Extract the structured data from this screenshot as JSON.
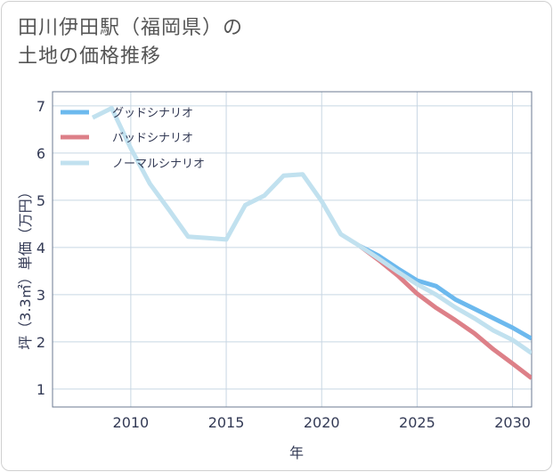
{
  "title": {
    "line1": "田川伊田駅（福岡県）の",
    "line2": "土地の価格推移"
  },
  "colors": {
    "good": "#6cb9ee",
    "bad": "#dd8088",
    "normal": "#c1e1ef",
    "grid": "#c8d6e3",
    "axis": "#6b7a90"
  },
  "chart_data": {
    "type": "line",
    "title": "田川伊田駅（福岡県）の土地の価格推移",
    "xlabel": "年",
    "ylabel": "坪（3.3㎡）単価（万円）",
    "xlim": [
      2005.9,
      2031
    ],
    "ylim": [
      0.62,
      7.3
    ],
    "xticks": [
      2010,
      2015,
      2020,
      2025,
      2030
    ],
    "yticks": [
      1,
      2,
      3,
      4,
      5,
      6,
      7
    ],
    "grid": true,
    "legend_position": "top-left",
    "series": [
      {
        "key": "good",
        "name": "グッドシナリオ",
        "x": [
          2022,
          2023,
          2024,
          2025,
          2026,
          2027,
          2028,
          2029,
          2030,
          2031
        ],
        "y": [
          4.03,
          3.82,
          3.55,
          3.3,
          3.18,
          2.9,
          2.7,
          2.5,
          2.3,
          2.07
        ]
      },
      {
        "key": "bad",
        "name": "バッドシナリオ",
        "x": [
          2022,
          2023,
          2024,
          2025,
          2026,
          2027,
          2028,
          2029,
          2030,
          2031
        ],
        "y": [
          4.03,
          3.73,
          3.4,
          3.02,
          2.72,
          2.46,
          2.18,
          1.84,
          1.54,
          1.23
        ]
      },
      {
        "key": "normal",
        "name": "ノーマルシナリオ",
        "x": [
          2008,
          2009,
          2010,
          2011,
          2012,
          2013,
          2014,
          2015,
          2016,
          2017,
          2018,
          2019,
          2020,
          2021,
          2022,
          2023,
          2024,
          2025,
          2026,
          2027,
          2028,
          2029,
          2030,
          2031
        ],
        "y": [
          6.75,
          6.95,
          6.1,
          5.35,
          4.8,
          4.23,
          4.2,
          4.17,
          4.9,
          5.1,
          5.52,
          5.55,
          4.98,
          4.28,
          4.03,
          3.76,
          3.48,
          3.22,
          3.0,
          2.73,
          2.5,
          2.24,
          2.04,
          1.76
        ]
      }
    ]
  }
}
